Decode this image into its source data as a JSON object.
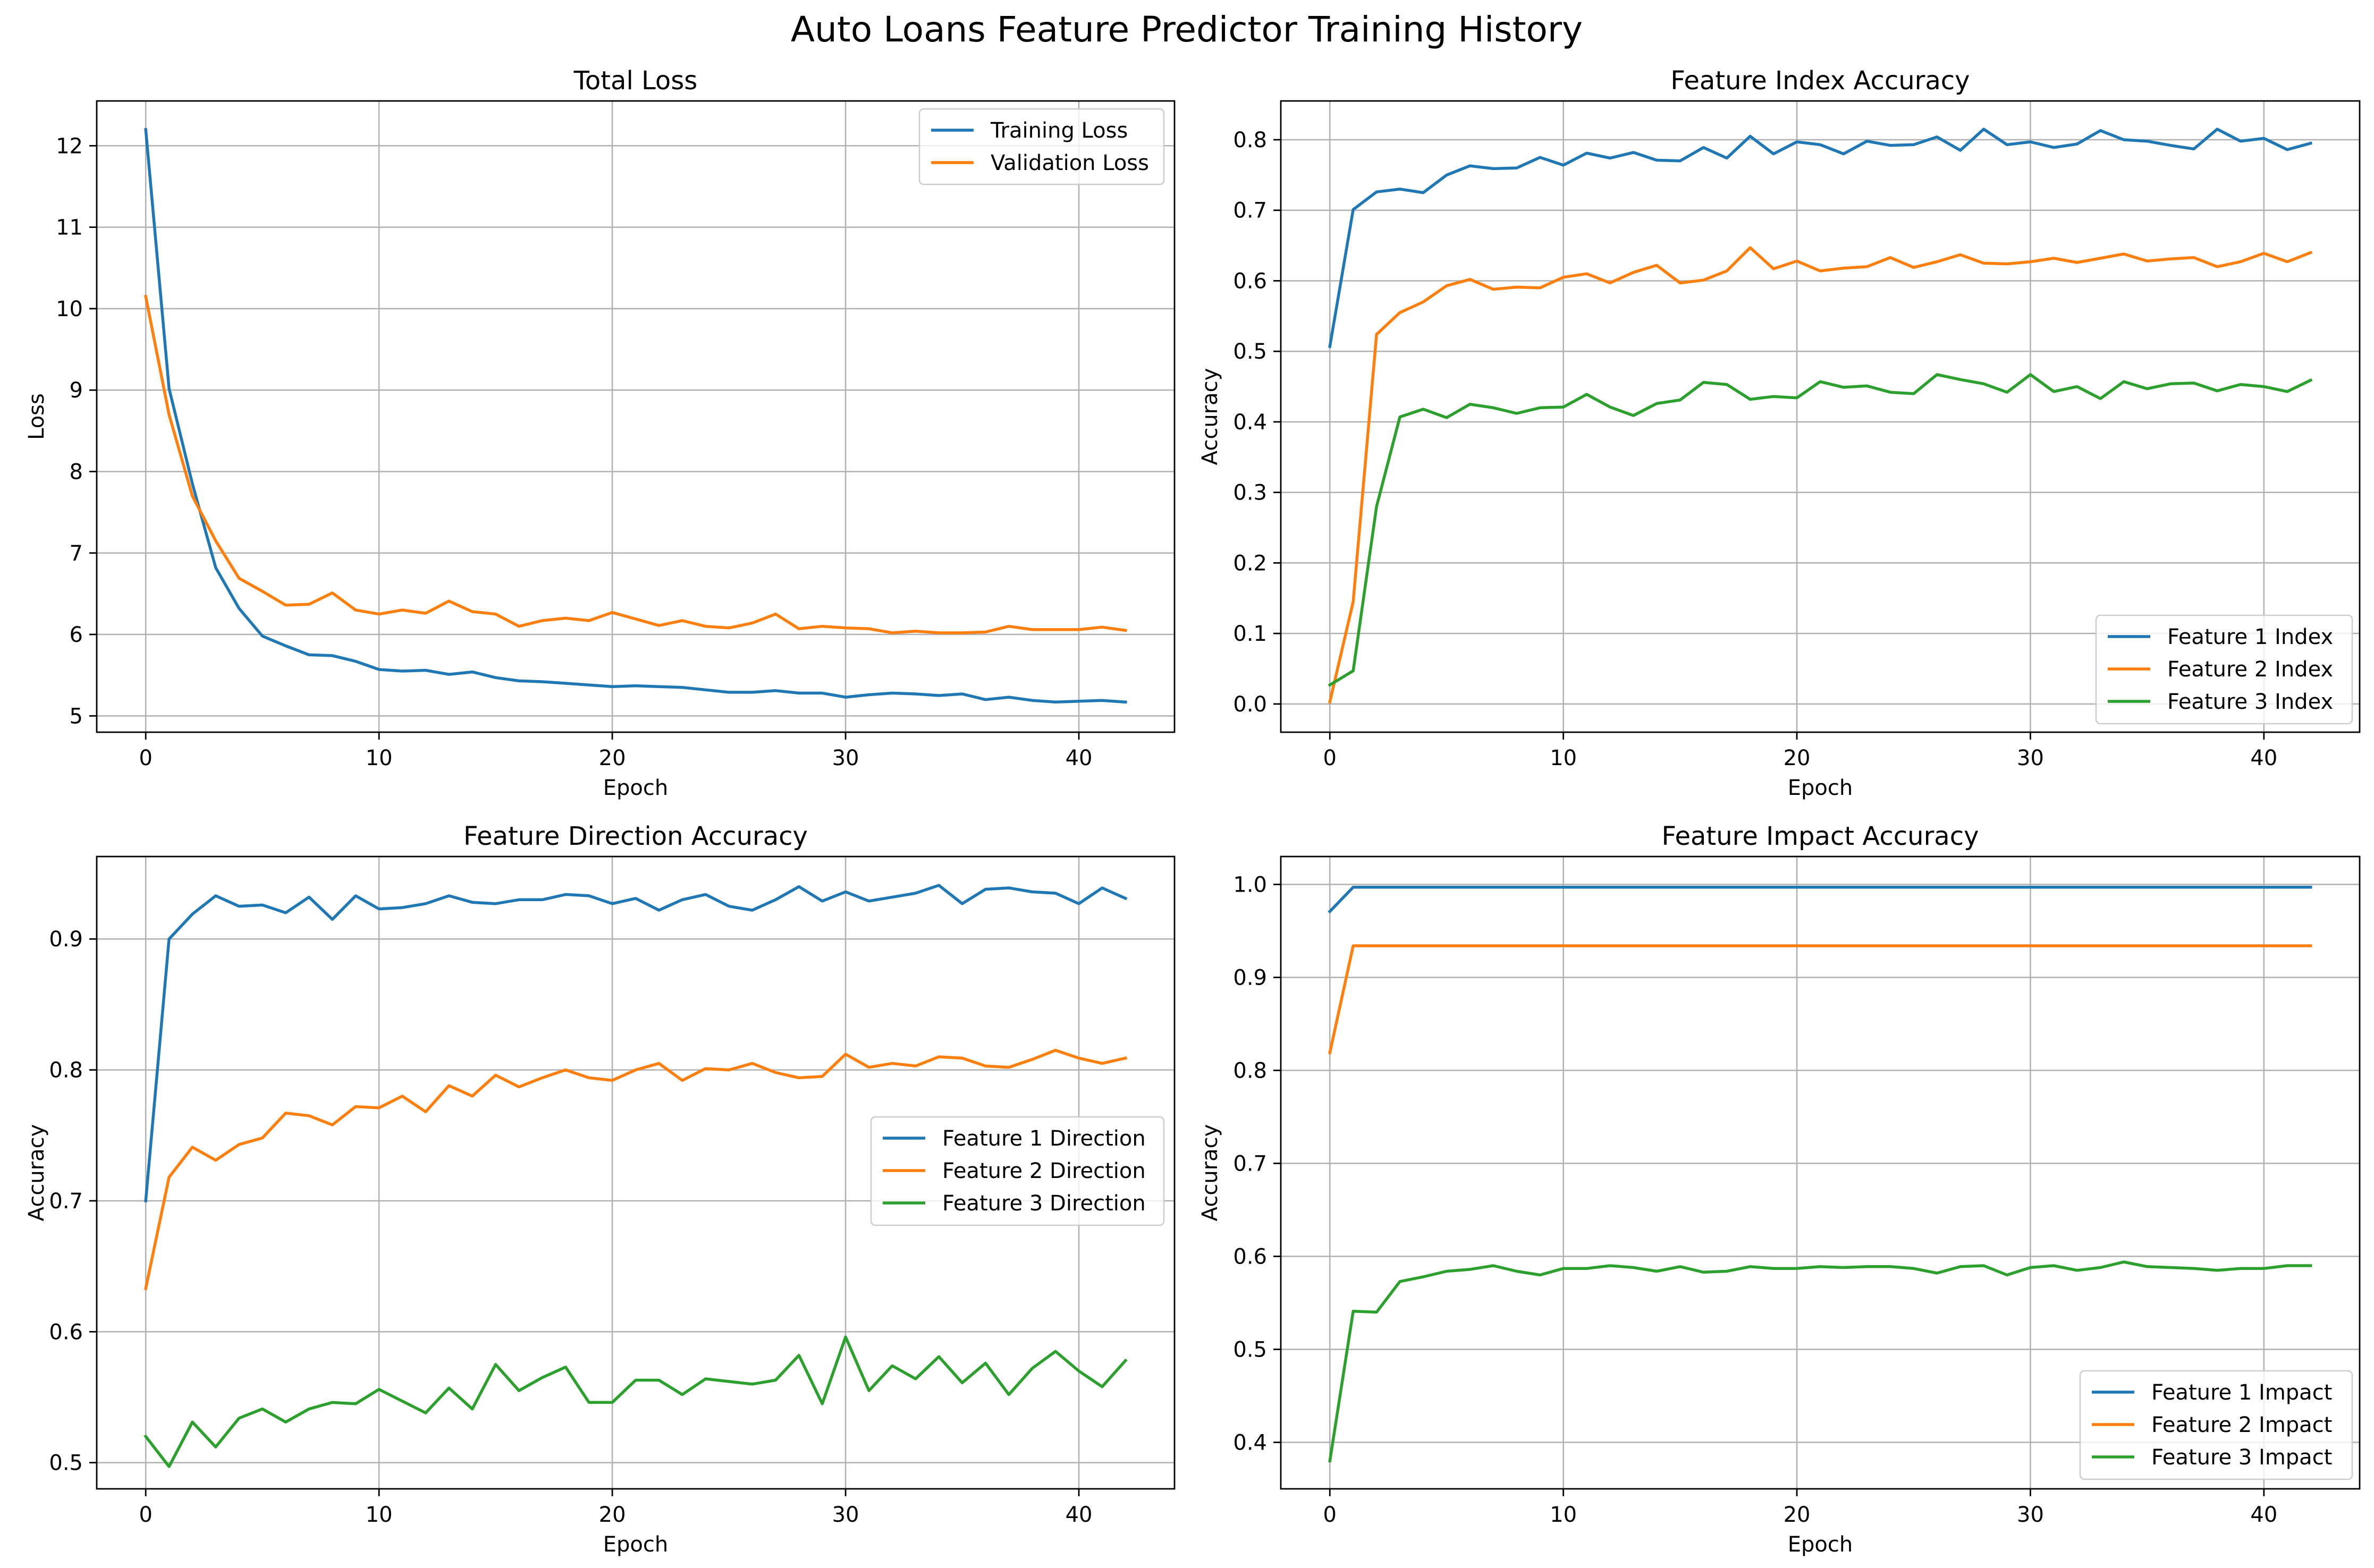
{
  "figure_title": "Auto Loans Feature Predictor Training History",
  "colors": {
    "series_1": "#1f77b4",
    "series_2": "#ff7f0e",
    "series_3": "#2ca02c",
    "grid": "#b0b0b0",
    "axes": "#000000"
  },
  "chart_data": [
    {
      "type": "line",
      "title": "Total Loss",
      "xlabel": "Epoch",
      "ylabel": "Loss",
      "xlim": [
        -2.1,
        44.1
      ],
      "ylim": [
        4.8,
        12.55
      ],
      "xticks": [
        0,
        10,
        20,
        30,
        40
      ],
      "yticks": [
        5,
        6,
        7,
        8,
        9,
        10,
        11,
        12
      ],
      "grid": true,
      "legend": "upper right",
      "x": [
        0,
        1,
        2,
        3,
        4,
        5,
        6,
        7,
        8,
        9,
        10,
        11,
        12,
        13,
        14,
        15,
        16,
        17,
        18,
        19,
        20,
        21,
        22,
        23,
        24,
        25,
        26,
        27,
        28,
        29,
        30,
        31,
        32,
        33,
        34,
        35,
        36,
        37,
        38,
        39,
        40,
        41,
        42
      ],
      "series": [
        {
          "name": "Training Loss",
          "color": "#1f77b4",
          "values": [
            12.2,
            9.02,
            7.85,
            6.82,
            6.32,
            5.98,
            5.86,
            5.75,
            5.74,
            5.67,
            5.57,
            5.55,
            5.56,
            5.51,
            5.54,
            5.47,
            5.43,
            5.42,
            5.4,
            5.38,
            5.36,
            5.37,
            5.36,
            5.35,
            5.32,
            5.29,
            5.29,
            5.31,
            5.28,
            5.28,
            5.23,
            5.26,
            5.28,
            5.27,
            5.25,
            5.27,
            5.2,
            5.23,
            5.19,
            5.17,
            5.18,
            5.19,
            5.17
          ]
        },
        {
          "name": "Validation Loss",
          "color": "#ff7f0e",
          "values": [
            10.15,
            8.7,
            7.7,
            7.15,
            6.69,
            6.53,
            6.36,
            6.37,
            6.51,
            6.3,
            6.25,
            6.3,
            6.26,
            6.41,
            6.28,
            6.25,
            6.1,
            6.17,
            6.2,
            6.17,
            6.27,
            6.19,
            6.11,
            6.17,
            6.1,
            6.08,
            6.14,
            6.25,
            6.07,
            6.1,
            6.08,
            6.07,
            6.02,
            6.04,
            6.02,
            6.02,
            6.03,
            6.1,
            6.06,
            6.06,
            6.06,
            6.09,
            6.05
          ]
        }
      ]
    },
    {
      "type": "line",
      "title": "Feature Index Accuracy",
      "xlabel": "Epoch",
      "ylabel": "Accuracy",
      "xlim": [
        -2.1,
        44.1
      ],
      "ylim": [
        -0.04,
        0.855
      ],
      "xticks": [
        0,
        10,
        20,
        30,
        40
      ],
      "yticks": [
        0.0,
        0.1,
        0.2,
        0.3,
        0.4,
        0.5,
        0.6,
        0.7,
        0.8
      ],
      "yticklabels": [
        "0.0",
        "0.1",
        "0.2",
        "0.3",
        "0.4",
        "0.5",
        "0.6",
        "0.7",
        "0.8"
      ],
      "grid": true,
      "legend": "lower right",
      "x": [
        0,
        1,
        2,
        3,
        4,
        5,
        6,
        7,
        8,
        9,
        10,
        11,
        12,
        13,
        14,
        15,
        16,
        17,
        18,
        19,
        20,
        21,
        22,
        23,
        24,
        25,
        26,
        27,
        28,
        29,
        30,
        31,
        32,
        33,
        34,
        35,
        36,
        37,
        38,
        39,
        40,
        41,
        42
      ],
      "series": [
        {
          "name": "Feature 1 Index",
          "color": "#1f77b4",
          "values": [
            0.507,
            0.701,
            0.726,
            0.73,
            0.725,
            0.75,
            0.763,
            0.759,
            0.76,
            0.775,
            0.764,
            0.781,
            0.774,
            0.782,
            0.771,
            0.77,
            0.789,
            0.774,
            0.805,
            0.78,
            0.797,
            0.793,
            0.78,
            0.798,
            0.792,
            0.793,
            0.804,
            0.785,
            0.815,
            0.793,
            0.797,
            0.789,
            0.794,
            0.813,
            0.8,
            0.798,
            0.792,
            0.787,
            0.815,
            0.798,
            0.802,
            0.786,
            0.795
          ]
        },
        {
          "name": "Feature 2 Index",
          "color": "#ff7f0e",
          "values": [
            0.003,
            0.145,
            0.524,
            0.555,
            0.57,
            0.593,
            0.602,
            0.588,
            0.591,
            0.59,
            0.605,
            0.61,
            0.597,
            0.612,
            0.622,
            0.597,
            0.601,
            0.614,
            0.647,
            0.617,
            0.628,
            0.614,
            0.618,
            0.62,
            0.633,
            0.619,
            0.627,
            0.637,
            0.625,
            0.624,
            0.627,
            0.632,
            0.626,
            0.632,
            0.638,
            0.628,
            0.631,
            0.633,
            0.62,
            0.627,
            0.639,
            0.627,
            0.64
          ]
        },
        {
          "name": "Feature 3 Index",
          "color": "#2ca02c",
          "values": [
            0.027,
            0.047,
            0.28,
            0.407,
            0.418,
            0.406,
            0.425,
            0.42,
            0.412,
            0.42,
            0.421,
            0.439,
            0.421,
            0.409,
            0.426,
            0.431,
            0.456,
            0.453,
            0.432,
            0.436,
            0.434,
            0.457,
            0.449,
            0.451,
            0.442,
            0.44,
            0.467,
            0.46,
            0.454,
            0.442,
            0.467,
            0.443,
            0.45,
            0.433,
            0.457,
            0.447,
            0.454,
            0.455,
            0.444,
            0.453,
            0.45,
            0.443,
            0.459
          ]
        }
      ]
    },
    {
      "type": "line",
      "title": "Feature Direction Accuracy",
      "xlabel": "Epoch",
      "ylabel": "Accuracy",
      "xlim": [
        -2.1,
        44.1
      ],
      "ylim": [
        0.48,
        0.963
      ],
      "xticks": [
        0,
        10,
        20,
        30,
        40
      ],
      "yticks": [
        0.5,
        0.6,
        0.7,
        0.8,
        0.9
      ],
      "grid": true,
      "legend": "center right",
      "x": [
        0,
        1,
        2,
        3,
        4,
        5,
        6,
        7,
        8,
        9,
        10,
        11,
        12,
        13,
        14,
        15,
        16,
        17,
        18,
        19,
        20,
        21,
        22,
        23,
        24,
        25,
        26,
        27,
        28,
        29,
        30,
        31,
        32,
        33,
        34,
        35,
        36,
        37,
        38,
        39,
        40,
        41,
        42
      ],
      "series": [
        {
          "name": "Feature 1 Direction",
          "color": "#1f77b4",
          "values": [
            0.7,
            0.9,
            0.919,
            0.933,
            0.925,
            0.926,
            0.92,
            0.932,
            0.915,
            0.933,
            0.923,
            0.924,
            0.927,
            0.933,
            0.928,
            0.927,
            0.93,
            0.93,
            0.934,
            0.933,
            0.927,
            0.931,
            0.922,
            0.93,
            0.934,
            0.925,
            0.922,
            0.93,
            0.94,
            0.929,
            0.936,
            0.929,
            0.932,
            0.935,
            0.941,
            0.927,
            0.938,
            0.939,
            0.936,
            0.935,
            0.927,
            0.939,
            0.931
          ]
        },
        {
          "name": "Feature 2 Direction",
          "color": "#ff7f0e",
          "values": [
            0.633,
            0.718,
            0.741,
            0.731,
            0.743,
            0.748,
            0.767,
            0.765,
            0.758,
            0.772,
            0.771,
            0.78,
            0.768,
            0.788,
            0.78,
            0.796,
            0.787,
            0.794,
            0.8,
            0.794,
            0.792,
            0.8,
            0.805,
            0.792,
            0.801,
            0.8,
            0.805,
            0.798,
            0.794,
            0.795,
            0.812,
            0.802,
            0.805,
            0.803,
            0.81,
            0.809,
            0.803,
            0.802,
            0.808,
            0.815,
            0.809,
            0.805,
            0.809
          ]
        },
        {
          "name": "Feature 3 Direction",
          "color": "#2ca02c",
          "values": [
            0.52,
            0.497,
            0.531,
            0.512,
            0.534,
            0.541,
            0.531,
            0.541,
            0.546,
            0.545,
            0.556,
            0.547,
            0.538,
            0.557,
            0.541,
            0.575,
            0.555,
            0.565,
            0.573,
            0.546,
            0.546,
            0.563,
            0.563,
            0.552,
            0.564,
            0.562,
            0.56,
            0.563,
            0.582,
            0.545,
            0.596,
            0.555,
            0.574,
            0.564,
            0.581,
            0.561,
            0.576,
            0.552,
            0.572,
            0.585,
            0.57,
            0.558,
            0.578
          ]
        }
      ]
    },
    {
      "type": "line",
      "title": "Feature Impact Accuracy",
      "xlabel": "Epoch",
      "ylabel": "Accuracy",
      "xlim": [
        -2.1,
        44.1
      ],
      "ylim": [
        0.35,
        1.03
      ],
      "xticks": [
        0,
        10,
        20,
        30,
        40
      ],
      "yticks": [
        0.4,
        0.5,
        0.6,
        0.7,
        0.8,
        0.9,
        1.0
      ],
      "yticklabels": [
        "0.4",
        "0.5",
        "0.6",
        "0.7",
        "0.8",
        "0.9",
        "1.0"
      ],
      "grid": true,
      "legend": "lower right",
      "x": [
        0,
        1,
        2,
        3,
        4,
        5,
        6,
        7,
        8,
        9,
        10,
        11,
        12,
        13,
        14,
        15,
        16,
        17,
        18,
        19,
        20,
        21,
        22,
        23,
        24,
        25,
        26,
        27,
        28,
        29,
        30,
        31,
        32,
        33,
        34,
        35,
        36,
        37,
        38,
        39,
        40,
        41,
        42
      ],
      "series": [
        {
          "name": "Feature 1 Impact",
          "color": "#1f77b4",
          "values": [
            0.971,
            0.997,
            0.997,
            0.997,
            0.997,
            0.997,
            0.997,
            0.997,
            0.997,
            0.997,
            0.997,
            0.997,
            0.997,
            0.997,
            0.997,
            0.997,
            0.997,
            0.997,
            0.997,
            0.997,
            0.997,
            0.997,
            0.997,
            0.997,
            0.997,
            0.997,
            0.997,
            0.997,
            0.997,
            0.997,
            0.997,
            0.997,
            0.997,
            0.997,
            0.997,
            0.997,
            0.997,
            0.997,
            0.997,
            0.997,
            0.997,
            0.997,
            0.997
          ]
        },
        {
          "name": "Feature 2 Impact",
          "color": "#ff7f0e",
          "values": [
            0.819,
            0.934,
            0.934,
            0.934,
            0.934,
            0.934,
            0.934,
            0.934,
            0.934,
            0.934,
            0.934,
            0.934,
            0.934,
            0.934,
            0.934,
            0.934,
            0.934,
            0.934,
            0.934,
            0.934,
            0.934,
            0.934,
            0.934,
            0.934,
            0.934,
            0.934,
            0.934,
            0.934,
            0.934,
            0.934,
            0.934,
            0.934,
            0.934,
            0.934,
            0.934,
            0.934,
            0.934,
            0.934,
            0.934,
            0.934,
            0.934,
            0.934,
            0.934
          ]
        },
        {
          "name": "Feature 3 Impact",
          "color": "#2ca02c",
          "values": [
            0.38,
            0.541,
            0.54,
            0.573,
            0.578,
            0.584,
            0.586,
            0.59,
            0.584,
            0.58,
            0.587,
            0.587,
            0.59,
            0.588,
            0.584,
            0.589,
            0.583,
            0.584,
            0.589,
            0.587,
            0.587,
            0.589,
            0.588,
            0.589,
            0.589,
            0.587,
            0.582,
            0.589,
            0.59,
            0.58,
            0.588,
            0.59,
            0.585,
            0.588,
            0.594,
            0.589,
            0.588,
            0.587,
            0.585,
            0.587,
            0.587,
            0.59,
            0.59
          ]
        }
      ]
    }
  ]
}
